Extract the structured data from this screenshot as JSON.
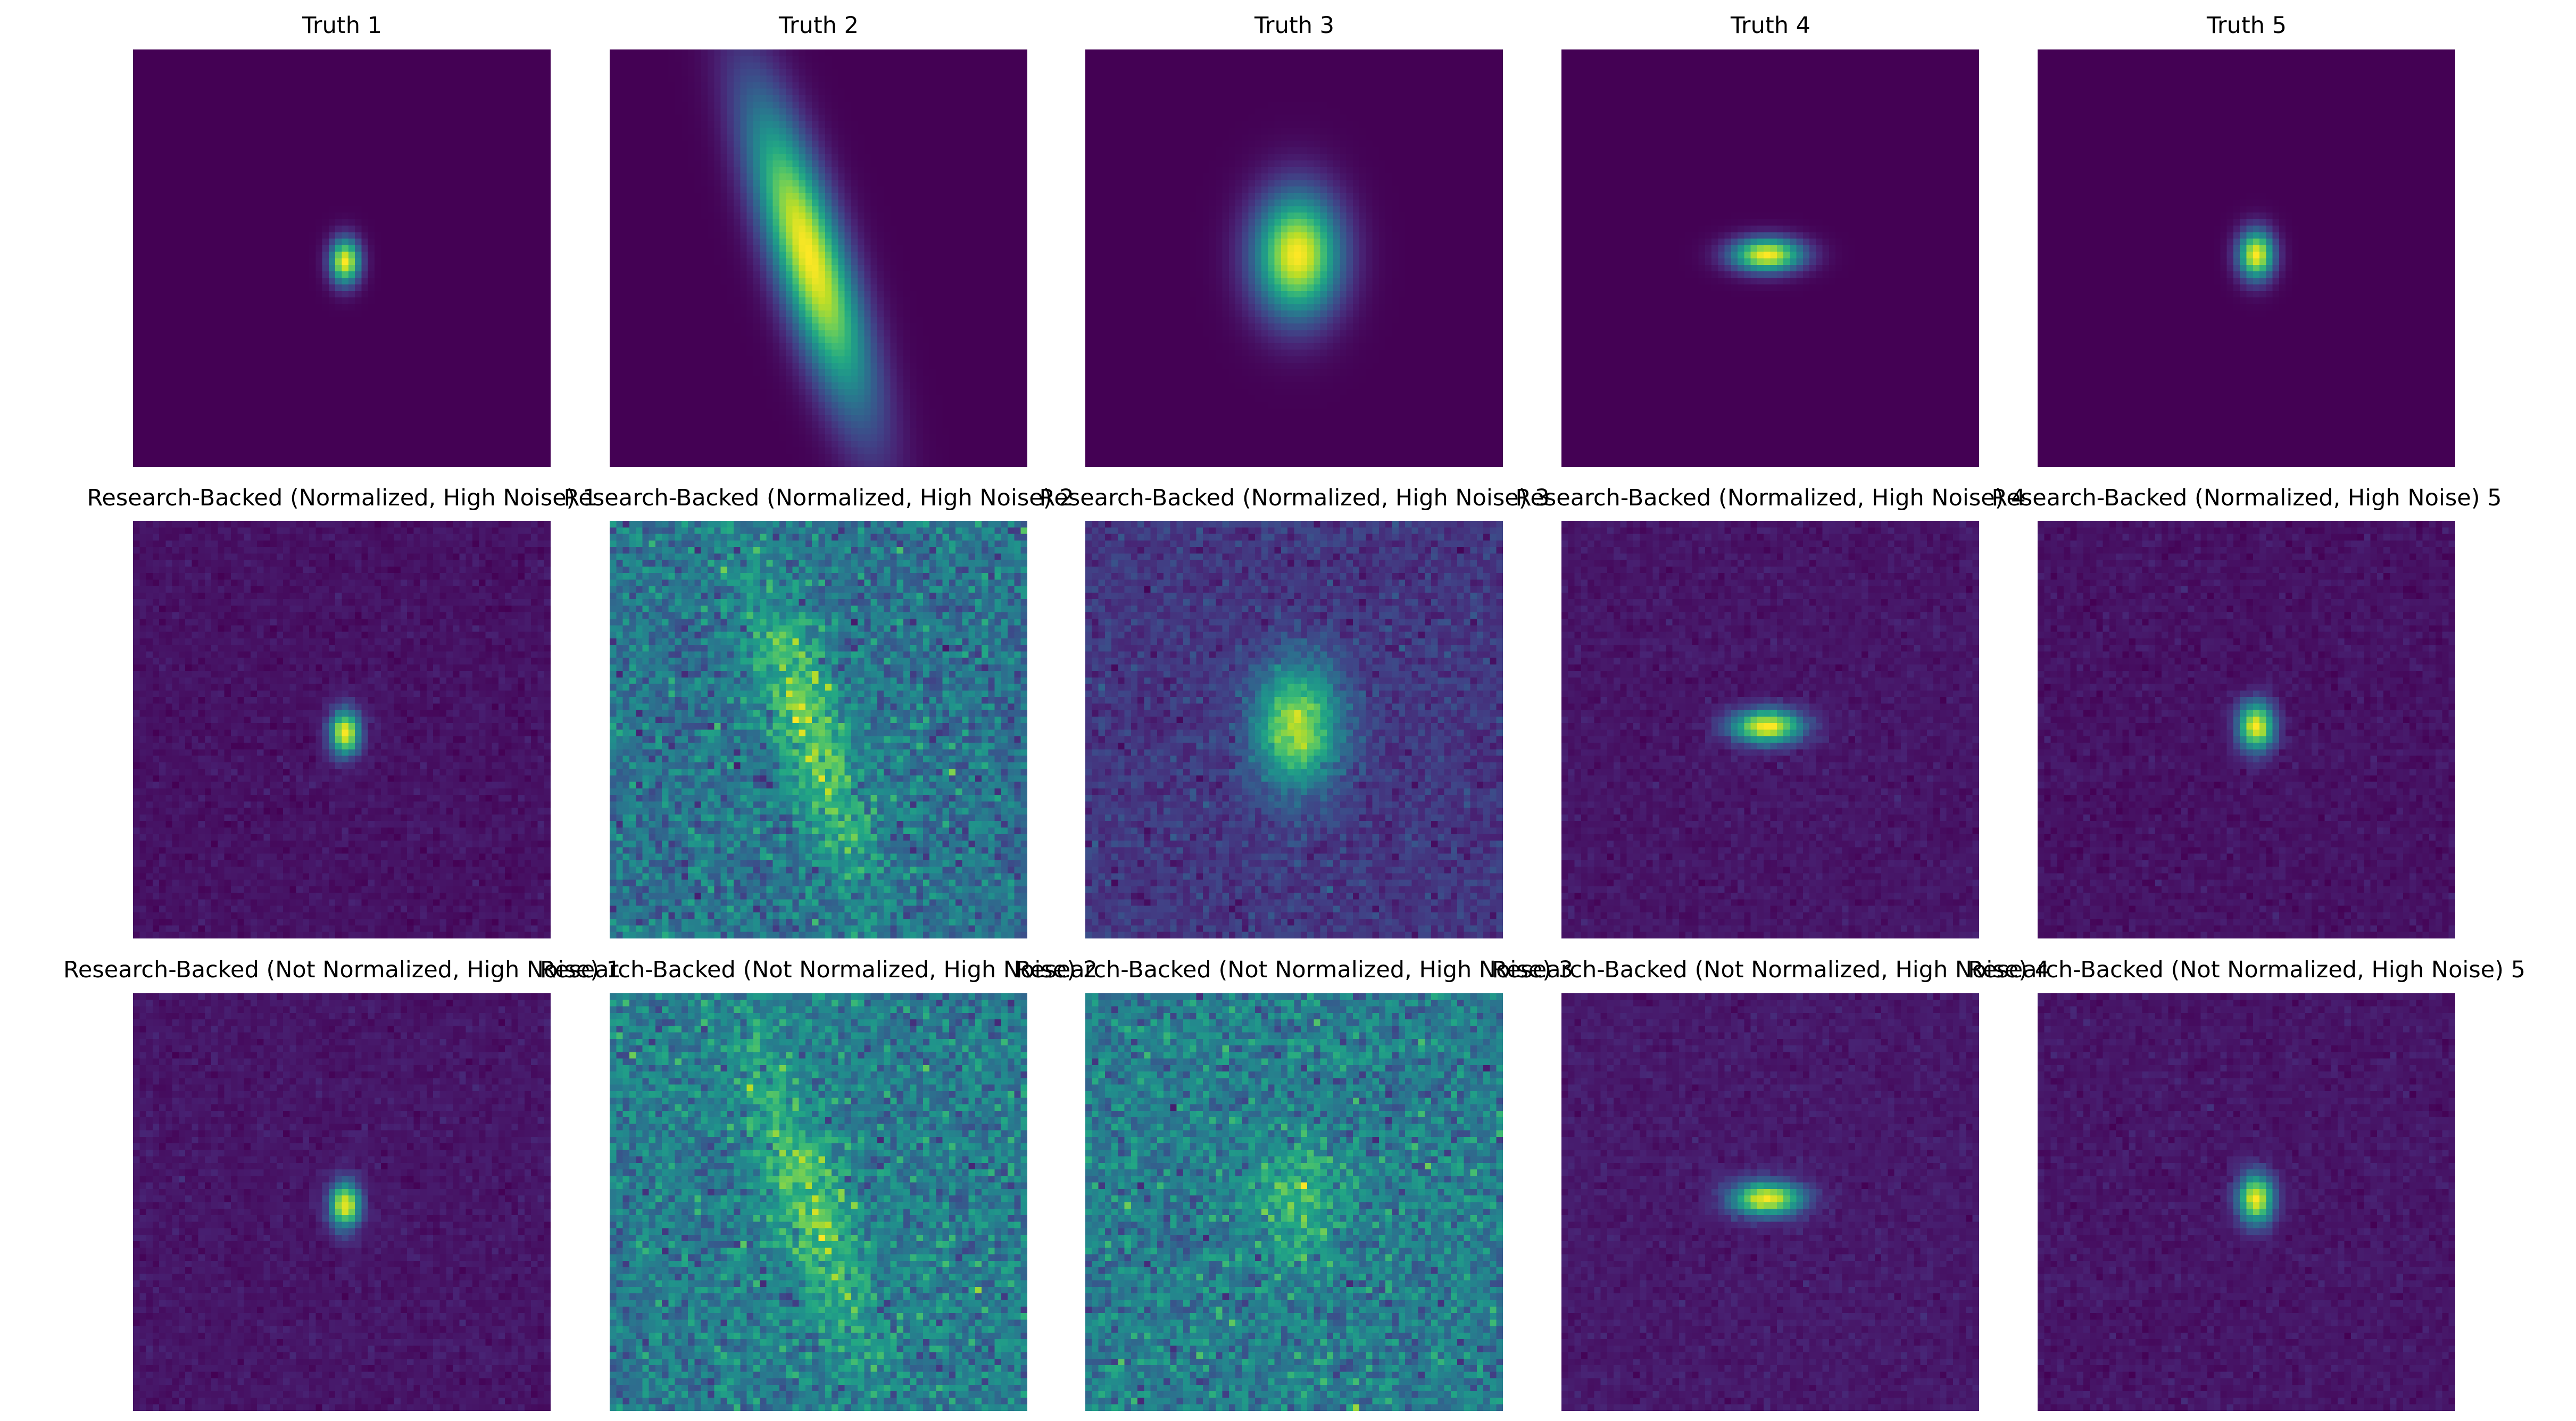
{
  "figure": {
    "rows": [
      {
        "titles": [
          "Truth 1",
          "Truth 2",
          "Truth 3",
          "Truth 4",
          "Truth 5"
        ]
      },
      {
        "titles": [
          "Research-Backed (Normalized, High Noise) 1",
          "Research-Backed (Normalized, High Noise) 2",
          "Research-Backed (Normalized, High Noise) 3",
          "Research-Backed (Normalized, High Noise) 4",
          "Research-Backed (Normalized, High Noise) 5"
        ]
      },
      {
        "titles": [
          "Research-Backed (Not Normalized, High Noise) 1",
          "Research-Backed (Not Normalized, High Noise) 2",
          "Research-Backed (Not Normalized, High Noise) 3",
          "Research-Backed (Not Normalized, High Noise) 4",
          "Research-Backed (Not Normalized, High Noise) 5"
        ]
      }
    ],
    "colormap": "viridis",
    "colors": {
      "low": "#440154",
      "mid": "#21918c",
      "high": "#fde725",
      "background": "#ffffff",
      "text": "#000000"
    }
  }
}
